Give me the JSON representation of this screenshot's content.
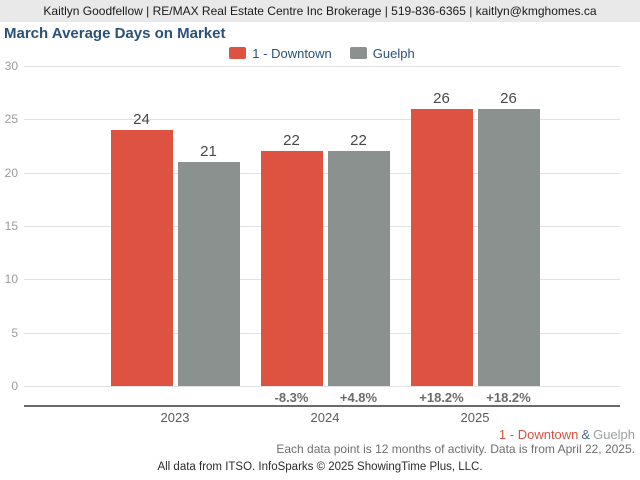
{
  "header": {
    "text": "Kaitlyn Goodfellow | RE/MAX Real Estate Centre Inc Brokerage | 519-836-6365 | kaitlyn@kmghomes.ca"
  },
  "title": "March Average Days on Market",
  "chart_data": {
    "type": "bar",
    "title": "March Average Days on Market",
    "categories": [
      "2023",
      "2024",
      "2025"
    ],
    "series": [
      {
        "name": "1 - Downtown",
        "key": "downtown",
        "color": "#dd5240",
        "values": [
          24,
          22,
          26
        ],
        "pct_changes": [
          "",
          "-8.3%",
          "+18.2%"
        ]
      },
      {
        "name": "Guelph",
        "key": "guelph",
        "color": "#8a918f",
        "values": [
          21,
          22,
          26
        ],
        "pct_changes": [
          "",
          "+4.8%",
          "+18.2%"
        ]
      }
    ],
    "xlabel": "",
    "ylabel": "",
    "ylim": [
      0,
      30
    ],
    "yticks": [
      0,
      5,
      10,
      15,
      20,
      25,
      30
    ],
    "grid": true,
    "legend_position": "top-center"
  },
  "footer": {
    "series_note": {
      "downtown": "1 - Downtown",
      "separator": "&",
      "guelph": "Guelph"
    },
    "activity_note": "Each data point is 12 months of activity. Data is from April 22, 2025.",
    "attribution": "All data from ITSO. InfoSparks © 2025 ShowingTime Plus, LLC."
  }
}
